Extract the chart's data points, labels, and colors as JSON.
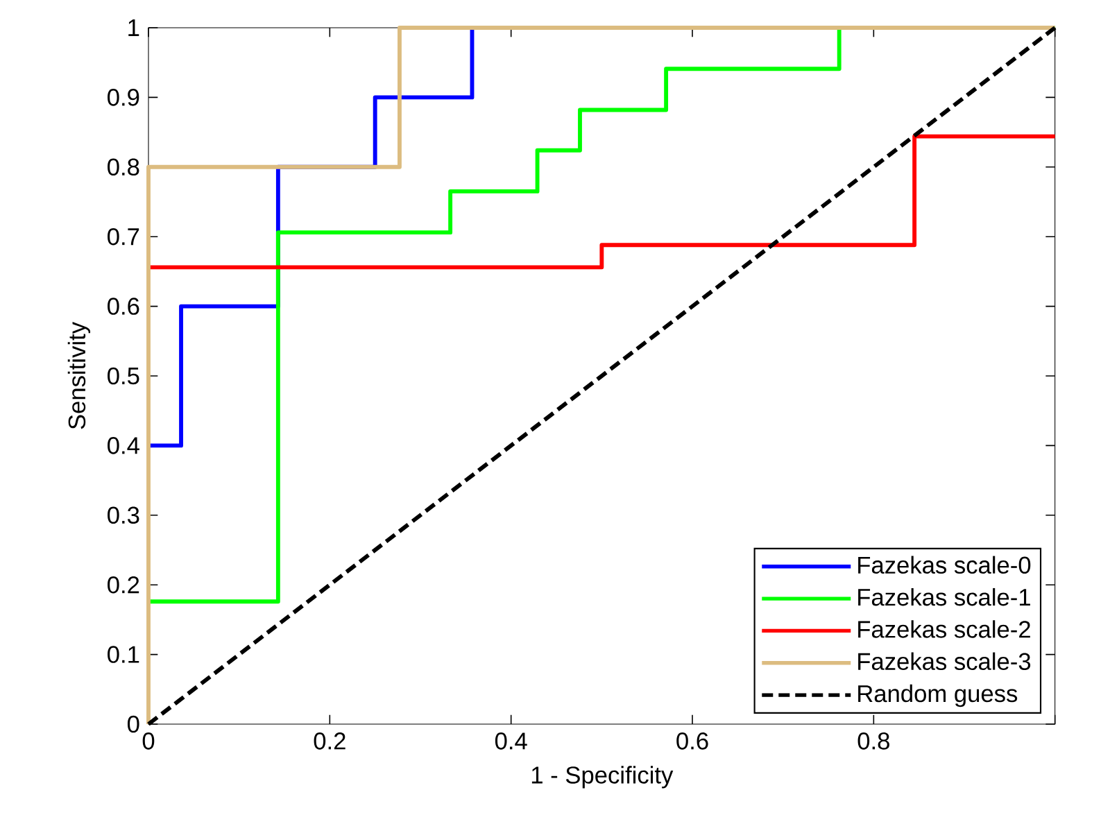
{
  "chart_data": {
    "type": "step",
    "xlabel": "1 - Specificity",
    "ylabel": "Sensitivity",
    "xlim": [
      0,
      1
    ],
    "ylim": [
      0,
      1
    ],
    "xticks": [
      0,
      0.2,
      0.4,
      0.6,
      0.8,
      {
        "value": 1,
        "label": null
      }
    ],
    "yticks": [
      0,
      0.1,
      0.2,
      0.3,
      0.4,
      0.5,
      0.6,
      0.7,
      0.8,
      0.9,
      1
    ],
    "legend": "bottom right",
    "grid": false,
    "marker": "none",
    "series": [
      {
        "name": "Fazekas scale-0",
        "color": "#0000ff",
        "x": [
          0,
          0.036,
          0.143,
          0.25,
          0.357
        ],
        "values": [
          0.4,
          0.6,
          0.8,
          0.9,
          1
        ]
      },
      {
        "name": "Fazekas scale-1",
        "color": "#00ff00",
        "x": [
          0,
          0.143,
          0.333,
          0.429,
          0.476,
          0.571,
          0.762,
          1
        ],
        "values": [
          0.176,
          0.706,
          0.765,
          0.824,
          0.882,
          0.941,
          1,
          1
        ]
      },
      {
        "name": "Fazekas scale-2",
        "color": "#ff0000",
        "x": [
          0,
          0.5,
          0.845,
          1
        ],
        "values": [
          0.656,
          0.688,
          0.844,
          0.844
        ]
      },
      {
        "name": "Fazekas scale-3",
        "color": "#dcbc80",
        "x": [
          0,
          0,
          0.277,
          1
        ],
        "values": [
          0,
          0.8,
          1,
          1
        ]
      },
      {
        "name": "Random guess",
        "color": "#000000",
        "type": "line",
        "line_style": "dashed",
        "x": [
          0,
          1
        ],
        "values": [
          0,
          1
        ]
      }
    ]
  }
}
